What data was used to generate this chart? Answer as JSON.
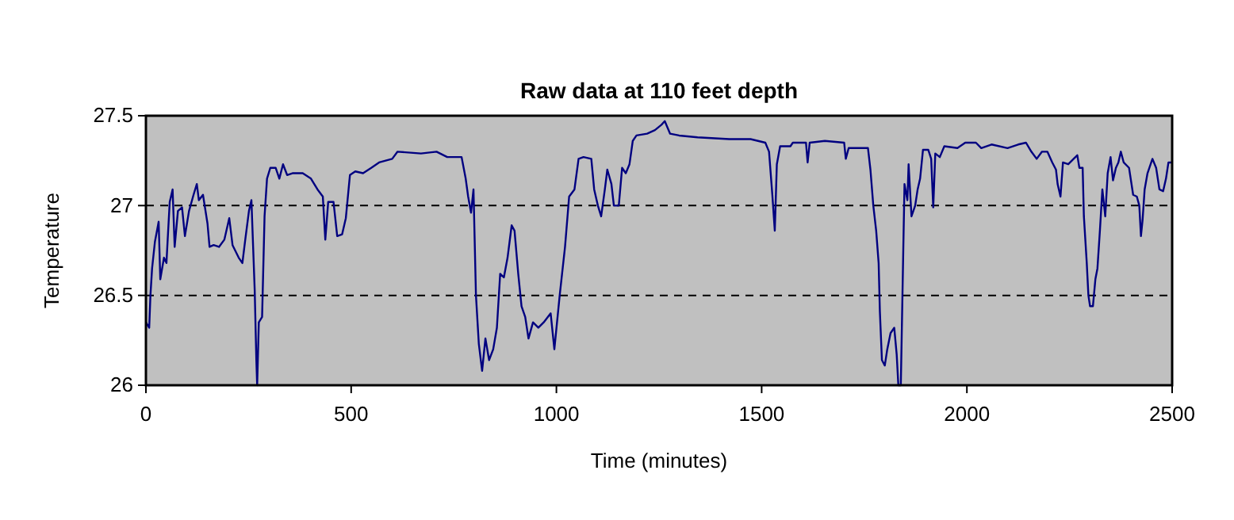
{
  "chart_data": {
    "type": "line",
    "title": "Raw data at 110 feet depth",
    "xlabel": "Time (minutes)",
    "ylabel": "Temperature",
    "xlim": [
      0,
      2500
    ],
    "xticks": [
      0,
      500,
      1000,
      1500,
      2000,
      2500
    ],
    "ylim": [
      26,
      27.5
    ],
    "yticks": [
      26,
      26.5,
      27,
      27.5
    ],
    "grid": "y",
    "marker": "none",
    "line_style": "solid",
    "series": [
      {
        "color": "#000080",
        "x": [
          0,
          8,
          11,
          15,
          22,
          31,
          35,
          44,
          50,
          53,
          58,
          65,
          70,
          78,
          88,
          95,
          105,
          116,
          124,
          129,
          139,
          150,
          155,
          165,
          178,
          191,
          203,
          211,
          226,
          235,
          242,
          251,
          257,
          265,
          269,
          271,
          275,
          283,
          289,
          295,
          303,
          316,
          325,
          334,
          344,
          357,
          382,
          402,
          418,
          431,
          437,
          444,
          457,
          466,
          478,
          487,
          497,
          510,
          529,
          549,
          568,
          600,
          613,
          670,
          708,
          734,
          769,
          779,
          785,
          792,
          798,
          804,
          811,
          819,
          827,
          836,
          846,
          855,
          863,
          872,
          881,
          891,
          898,
          907,
          915,
          924,
          932,
          943,
          956,
          969,
          986,
          995,
          1008,
          1021,
          1031,
          1044,
          1054,
          1066,
          1085,
          1092,
          1101,
          1109,
          1118,
          1124,
          1134,
          1140,
          1152,
          1160,
          1169,
          1178,
          1186,
          1195,
          1221,
          1240,
          1256,
          1264,
          1277,
          1299,
          1344,
          1421,
          1473,
          1509,
          1518,
          1526,
          1532,
          1537,
          1545,
          1570,
          1576,
          1608,
          1612,
          1617,
          1654,
          1701,
          1705,
          1712,
          1759,
          1765,
          1772,
          1779,
          1785,
          1788,
          1793,
          1800,
          1806,
          1814,
          1823,
          1829,
          1833,
          1839,
          1845,
          1848,
          1855,
          1858,
          1865,
          1874,
          1880,
          1886,
          1893,
          1906,
          1913,
          1918,
          1923,
          1934,
          1945,
          1977,
          1996,
          2022,
          2035,
          2060,
          2099,
          2125,
          2144,
          2157,
          2170,
          2183,
          2196,
          2208,
          2217,
          2221,
          2228,
          2234,
          2247,
          2260,
          2269,
          2274,
          2282,
          2285,
          2292,
          2296,
          2300,
          2307,
          2313,
          2318,
          2324,
          2330,
          2337,
          2343,
          2350,
          2356,
          2363,
          2369,
          2375,
          2382,
          2395,
          2405,
          2414,
          2420,
          2424,
          2428,
          2433,
          2440,
          2452,
          2461,
          2469,
          2478,
          2485,
          2491,
          2500
        ],
        "values": [
          26.35,
          26.32,
          26.5,
          26.65,
          26.8,
          26.91,
          26.59,
          26.71,
          26.68,
          26.81,
          27.02,
          27.09,
          26.77,
          26.97,
          26.99,
          26.83,
          26.97,
          27.06,
          27.12,
          27.03,
          27.06,
          26.9,
          26.77,
          26.78,
          26.77,
          26.81,
          26.93,
          26.78,
          26.71,
          26.68,
          26.81,
          26.97,
          27.03,
          26.53,
          26.14,
          26.0,
          26.35,
          26.38,
          26.94,
          27.15,
          27.21,
          27.21,
          27.15,
          27.23,
          27.17,
          27.18,
          27.18,
          27.15,
          27.09,
          27.05,
          26.81,
          27.02,
          27.02,
          26.83,
          26.84,
          26.93,
          27.17,
          27.19,
          27.18,
          27.21,
          27.24,
          27.26,
          27.3,
          27.29,
          27.3,
          27.27,
          27.27,
          27.15,
          27.05,
          26.96,
          27.09,
          26.5,
          26.23,
          26.08,
          26.26,
          26.14,
          26.2,
          26.32,
          26.62,
          26.6,
          26.71,
          26.89,
          26.86,
          26.62,
          26.44,
          26.38,
          26.26,
          26.35,
          26.32,
          26.35,
          26.4,
          26.2,
          26.5,
          26.77,
          27.05,
          27.09,
          27.26,
          27.27,
          27.26,
          27.09,
          27.0,
          26.94,
          27.09,
          27.2,
          27.12,
          27.0,
          27.0,
          27.21,
          27.18,
          27.23,
          27.36,
          27.39,
          27.4,
          27.42,
          27.45,
          27.47,
          27.4,
          27.39,
          27.38,
          27.37,
          27.37,
          27.35,
          27.3,
          27.06,
          26.86,
          27.23,
          27.33,
          27.33,
          27.35,
          27.35,
          27.24,
          27.35,
          27.36,
          27.35,
          27.26,
          27.32,
          27.32,
          27.2,
          27.0,
          26.86,
          26.68,
          26.41,
          26.14,
          26.11,
          26.2,
          26.29,
          26.32,
          26.17,
          26.0,
          26.0,
          26.75,
          27.12,
          27.03,
          27.23,
          26.94,
          27.0,
          27.09,
          27.15,
          27.31,
          27.31,
          27.26,
          26.99,
          27.29,
          27.27,
          27.33,
          27.32,
          27.35,
          27.35,
          27.32,
          27.34,
          27.32,
          27.34,
          27.35,
          27.3,
          27.26,
          27.3,
          27.3,
          27.24,
          27.2,
          27.12,
          27.05,
          27.24,
          27.23,
          27.26,
          27.28,
          27.21,
          27.21,
          26.94,
          26.68,
          26.5,
          26.44,
          26.44,
          26.59,
          26.65,
          26.86,
          27.09,
          26.94,
          27.18,
          27.27,
          27.14,
          27.21,
          27.24,
          27.3,
          27.24,
          27.21,
          27.06,
          27.05,
          27.0,
          26.83,
          26.92,
          27.09,
          27.18,
          27.26,
          27.21,
          27.09,
          27.08,
          27.15,
          27.24,
          27.24
        ]
      }
    ]
  }
}
